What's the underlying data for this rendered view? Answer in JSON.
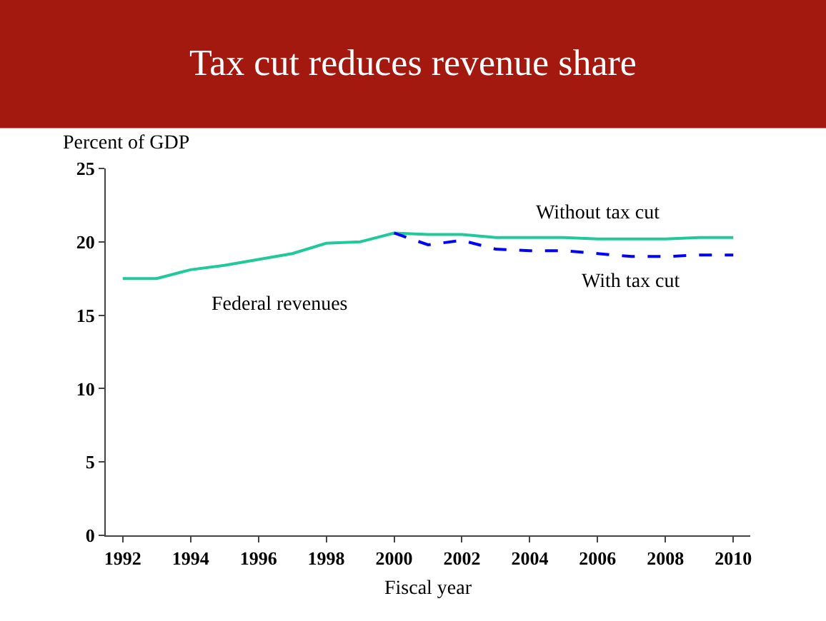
{
  "chart_data": {
    "type": "line",
    "title": "Tax cut reduces revenue share",
    "xlabel": "Fiscal year",
    "ylabel": "Percent of GDP",
    "x": [
      1992,
      1993,
      1994,
      1995,
      1996,
      1997,
      1998,
      1999,
      2000,
      2001,
      2002,
      2003,
      2004,
      2005,
      2006,
      2007,
      2008,
      2009,
      2010
    ],
    "series": [
      {
        "name": "Without tax cut",
        "color": "#1fc99a",
        "line_style": "solid",
        "values": [
          17.5,
          17.5,
          18.1,
          18.4,
          18.8,
          19.2,
          19.9,
          20.0,
          20.6,
          20.5,
          20.5,
          20.3,
          20.3,
          20.3,
          20.2,
          20.2,
          20.2,
          20.3,
          20.3
        ]
      },
      {
        "name": "With tax cut",
        "color": "#0000ff",
        "line_style": "dashed",
        "values": [
          null,
          null,
          null,
          null,
          null,
          null,
          null,
          null,
          20.6,
          19.8,
          20.1,
          19.5,
          19.4,
          19.4,
          19.2,
          19.0,
          19.0,
          19.1,
          19.1
        ]
      }
    ],
    "annotations": [
      "Federal revenues"
    ],
    "xlim": [
      1991.5,
      2010.5
    ],
    "xticks": [
      1992,
      1994,
      1996,
      1998,
      2000,
      2002,
      2004,
      2006,
      2008,
      2010
    ],
    "ylim": [
      0,
      25
    ],
    "yticks": [
      0,
      5,
      10,
      15,
      20,
      25
    ],
    "legend": false,
    "marker": "none"
  }
}
